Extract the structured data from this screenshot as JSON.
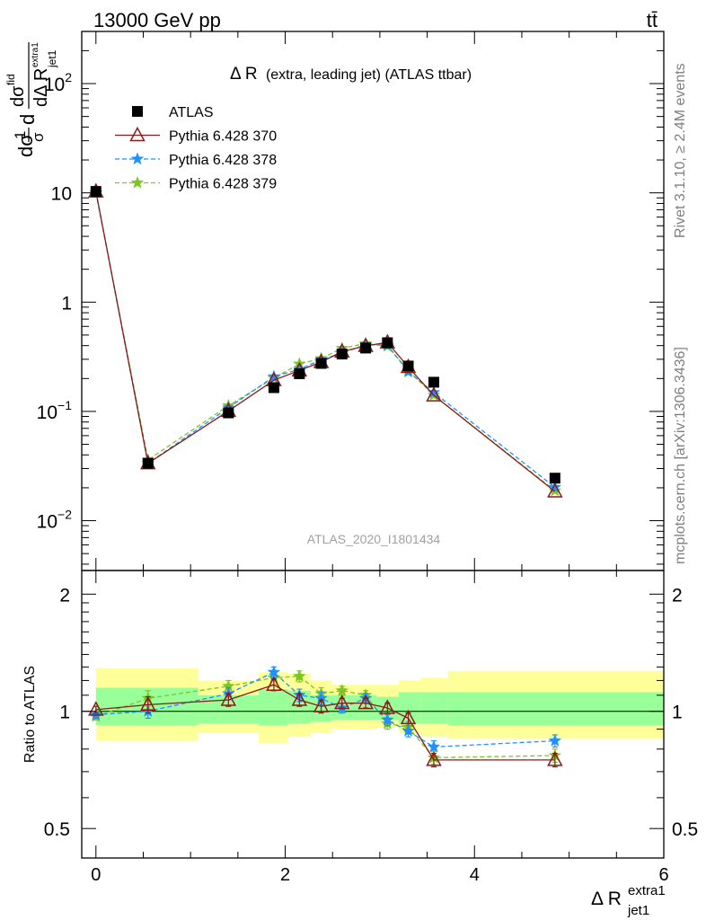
{
  "header": {
    "energy_label": "13000 GeV pp",
    "process_label": "tt̄"
  },
  "side_text": {
    "rivet": "Rivet 3.1.10, ≥ 2.4M events",
    "source": "mcplots.cern.ch [arXiv:1306.3436]"
  },
  "chart_data": [
    {
      "type": "line",
      "panel": "main",
      "title_main": "Δ R",
      "title_rest": "(extra, leading jet) (ATLAS ttbar)",
      "watermark": "ATLAS_2020_I1801434",
      "ylabel_left": "dσ",
      "ylabel_frac_num": "1",
      "ylabel_frac_den": "σ",
      "ylabel_d_num": "dσ",
      "ylabel_d_num_sup": "fid",
      "ylabel_d_den": "dΔ R",
      "ylabel_d_den_sub": "jet1",
      "ylabel_d_den_sup": "extra1",
      "yscale": "log",
      "ylim": [
        0.0035,
        300
      ],
      "xlim": [
        -0.15,
        6.0
      ],
      "y_tick_labels": [
        {
          "v": 0.01,
          "base": "10",
          "exp": "−2"
        },
        {
          "v": 0.1,
          "base": "10",
          "exp": "−1"
        },
        {
          "v": 1,
          "base": "1",
          "exp": ""
        },
        {
          "v": 10,
          "base": "10",
          "exp": ""
        },
        {
          "v": 100,
          "base": "10",
          "exp": "2"
        }
      ],
      "legend_position": "top-left",
      "x": [
        0.0,
        0.55,
        1.4,
        1.88,
        2.15,
        2.38,
        2.6,
        2.85,
        3.08,
        3.3,
        3.57,
        4.85
      ],
      "series": [
        {
          "name": "ATLAS",
          "marker": "square",
          "color": "#000000",
          "values": [
            10.3,
            0.0335,
            0.097,
            0.165,
            0.221,
            0.275,
            0.335,
            0.38,
            0.425,
            0.26,
            0.185,
            0.0245
          ]
        },
        {
          "name": "Pythia 6.428 370",
          "marker": "open-triangle",
          "color": "#8b1a1a",
          "dash": "solid",
          "values": [
            10.3,
            0.0335,
            0.101,
            0.193,
            0.237,
            0.283,
            0.353,
            0.398,
            0.428,
            0.255,
            0.14,
            0.0185
          ]
        },
        {
          "name": "Pythia 6.428 378",
          "marker": "star",
          "color": "#1e90ff",
          "dash": "dashed",
          "values": [
            10.1,
            0.0335,
            0.108,
            0.208,
            0.243,
            0.297,
            0.341,
            0.409,
            0.405,
            0.23,
            0.149,
            0.0202
          ]
        },
        {
          "name": "Pythia 6.428 379",
          "marker": "star",
          "color": "#7cc623",
          "dash": "dashed",
          "values": [
            10.0,
            0.036,
            0.113,
            0.202,
            0.272,
            0.305,
            0.378,
            0.418,
            0.395,
            0.237,
            0.141,
            0.0188
          ]
        }
      ]
    },
    {
      "type": "line",
      "panel": "ratio",
      "ylabel": "Ratio to ATLAS",
      "xlabel": "Δ R",
      "xlabel_sup": "extra1",
      "xlabel_sub": "jet1",
      "xlim": [
        -0.15,
        6.0
      ],
      "ylim": [
        0.42,
        2.3
      ],
      "x_tick_labels": [
        0,
        2,
        4,
        6
      ],
      "y_tick_labels": [
        0.5,
        1,
        2
      ],
      "bands": [
        {
          "x0": 0.0,
          "x1": 1.08,
          "stat": [
            0.92,
            1.15
          ],
          "syst": [
            0.84,
            1.29
          ]
        },
        {
          "x0": 1.08,
          "x1": 1.72,
          "stat": [
            0.93,
            1.1
          ],
          "syst": [
            0.88,
            1.2
          ]
        },
        {
          "x0": 1.72,
          "x1": 2.03,
          "stat": [
            0.92,
            1.14
          ],
          "syst": [
            0.83,
            1.26
          ]
        },
        {
          "x0": 2.03,
          "x1": 2.27,
          "stat": [
            0.93,
            1.13
          ],
          "syst": [
            0.86,
            1.25
          ]
        },
        {
          "x0": 2.27,
          "x1": 2.49,
          "stat": [
            0.94,
            1.1
          ],
          "syst": [
            0.88,
            1.2
          ]
        },
        {
          "x0": 2.49,
          "x1": 2.72,
          "stat": [
            0.95,
            1.1
          ],
          "syst": [
            0.9,
            1.17
          ]
        },
        {
          "x0": 2.72,
          "x1": 2.97,
          "stat": [
            0.95,
            1.1
          ],
          "syst": [
            0.9,
            1.17
          ]
        },
        {
          "x0": 2.97,
          "x1": 3.2,
          "stat": [
            0.95,
            1.09
          ],
          "syst": [
            0.91,
            1.17
          ]
        },
        {
          "x0": 3.2,
          "x1": 3.43,
          "stat": [
            0.93,
            1.12
          ],
          "syst": [
            0.88,
            1.2
          ]
        },
        {
          "x0": 3.43,
          "x1": 3.72,
          "stat": [
            0.93,
            1.12
          ],
          "syst": [
            0.86,
            1.22
          ]
        },
        {
          "x0": 3.72,
          "x1": 6.0,
          "stat": [
            0.92,
            1.12
          ],
          "syst": [
            0.85,
            1.27
          ]
        }
      ],
      "x": [
        0.0,
        0.55,
        1.4,
        1.88,
        2.15,
        2.38,
        2.6,
        2.85,
        3.08,
        3.3,
        3.57,
        4.85
      ],
      "series": [
        {
          "name": "Pythia 6.428 370",
          "marker": "open-triangle",
          "color": "#8b1a1a",
          "dash": "solid",
          "values": [
            1.01,
            1.04,
            1.07,
            1.17,
            1.07,
            1.03,
            1.05,
            1.05,
            1.02,
            0.96,
            0.75,
            0.75
          ],
          "errors": [
            0.02,
            0.05,
            0.04,
            0.04,
            0.04,
            0.04,
            0.03,
            0.03,
            0.03,
            0.03,
            0.03,
            0.03
          ]
        },
        {
          "name": "Pythia 6.428 378",
          "marker": "star",
          "color": "#1e90ff",
          "dash": "dashed",
          "values": [
            0.98,
            1.0,
            1.11,
            1.26,
            1.1,
            1.08,
            1.02,
            1.08,
            0.95,
            0.89,
            0.81,
            0.84
          ],
          "errors": [
            0.02,
            0.04,
            0.04,
            0.04,
            0.04,
            0.04,
            0.03,
            0.03,
            0.03,
            0.03,
            0.03,
            0.03
          ]
        },
        {
          "name": "Pythia 6.428 379",
          "marker": "star",
          "color": "#7cc623",
          "dash": "dashed",
          "values": [
            0.97,
            1.08,
            1.16,
            1.22,
            1.23,
            1.11,
            1.13,
            1.1,
            0.93,
            0.91,
            0.76,
            0.77
          ],
          "errors": [
            0.02,
            0.05,
            0.04,
            0.05,
            0.04,
            0.04,
            0.03,
            0.03,
            0.03,
            0.03,
            0.03,
            0.03
          ]
        }
      ]
    }
  ]
}
